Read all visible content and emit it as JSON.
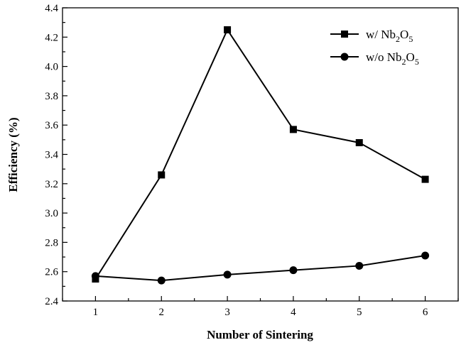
{
  "chart_data": {
    "type": "line",
    "xlabel": "Number of Sintering",
    "ylabel": "Efficiency (%)",
    "x": [
      1,
      2,
      3,
      4,
      5,
      6
    ],
    "xlim": [
      0.5,
      6.5
    ],
    "ylim": [
      2.4,
      4.4
    ],
    "xticks": [
      1,
      2,
      3,
      4,
      5,
      6
    ],
    "yticks": [
      "2.4",
      "2.6",
      "2.8",
      "3.0",
      "3.2",
      "3.4",
      "3.6",
      "3.8",
      "4.0",
      "4.2",
      "4.4"
    ],
    "grid": false,
    "legend_position": "top-right",
    "series": [
      {
        "name": "w/   Nb2O5",
        "name_parts": {
          "prefix": "w/   Nb",
          "sub1": "2",
          "mid": "O",
          "sub2": "5"
        },
        "marker": "square",
        "color": "#000000",
        "values": [
          2.55,
          3.26,
          4.25,
          3.57,
          3.48,
          3.23
        ]
      },
      {
        "name": "w/o Nb2O5",
        "name_parts": {
          "prefix": "w/o Nb",
          "sub1": "2",
          "mid": "O",
          "sub2": "5"
        },
        "marker": "circle",
        "color": "#000000",
        "values": [
          2.57,
          2.54,
          2.58,
          2.61,
          2.64,
          2.71
        ]
      }
    ]
  }
}
